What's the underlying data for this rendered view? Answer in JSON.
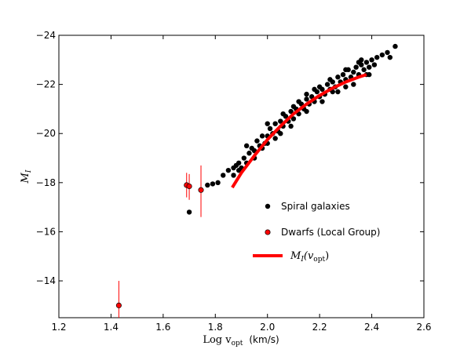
{
  "chart_data": {
    "type": "scatter",
    "xlabel": "Log v",
    "xlabel_sub": "opt",
    "xlabel_unit": "(km/s)",
    "ylabel": "M",
    "ylabel_sub": "I",
    "xlim": [
      1.2,
      2.6
    ],
    "ylim": [
      -12.5,
      -24
    ],
    "y_inverted": true,
    "grid": false,
    "legend_position": "center-right",
    "x_ticks": [
      1.2,
      1.4,
      1.6,
      1.8,
      2.0,
      2.2,
      2.4,
      2.6
    ],
    "x_tick_labels": [
      "1.2",
      "1.4",
      "1.6",
      "1.8",
      "2.0",
      "2.2",
      "2.4",
      "2.6"
    ],
    "y_ticks": [
      -14,
      -16,
      -18,
      -20,
      -22,
      -24
    ],
    "y_tick_labels": [
      "−14",
      "−16",
      "−18",
      "−20",
      "−22",
      "−24"
    ],
    "series": [
      {
        "name": "Spiral galaxies",
        "kind": "scatter",
        "color": "#000000",
        "points": [
          [
            1.7,
            -16.8
          ],
          [
            1.77,
            -17.9
          ],
          [
            1.79,
            -17.95
          ],
          [
            1.81,
            -18.0
          ],
          [
            1.83,
            -18.3
          ],
          [
            1.85,
            -18.5
          ],
          [
            1.87,
            -18.6
          ],
          [
            1.87,
            -18.3
          ],
          [
            1.89,
            -18.5
          ],
          [
            1.88,
            -18.7
          ],
          [
            1.89,
            -18.8
          ],
          [
            1.9,
            -18.6
          ],
          [
            1.91,
            -19.0
          ],
          [
            1.92,
            -18.8
          ],
          [
            1.93,
            -19.2
          ],
          [
            1.94,
            -19.4
          ],
          [
            1.95,
            -19.3
          ],
          [
            1.96,
            -19.7
          ],
          [
            1.97,
            -19.5
          ],
          [
            1.98,
            -19.9
          ],
          [
            1.99,
            -19.6
          ],
          [
            2.0,
            -19.9
          ],
          [
            2.01,
            -20.2
          ],
          [
            2.02,
            -20.0
          ],
          [
            2.03,
            -20.4
          ],
          [
            2.04,
            -20.1
          ],
          [
            2.05,
            -20.5
          ],
          [
            2.06,
            -20.3
          ],
          [
            2.07,
            -20.7
          ],
          [
            2.08,
            -20.5
          ],
          [
            2.09,
            -20.9
          ],
          [
            2.1,
            -20.6
          ],
          [
            2.11,
            -21.0
          ],
          [
            2.12,
            -20.8
          ],
          [
            2.13,
            -21.2
          ],
          [
            2.14,
            -21.0
          ],
          [
            2.15,
            -21.4
          ],
          [
            2.16,
            -21.2
          ],
          [
            2.17,
            -21.5
          ],
          [
            2.18,
            -21.3
          ],
          [
            2.19,
            -21.7
          ],
          [
            2.2,
            -21.5
          ],
          [
            2.21,
            -21.8
          ],
          [
            2.22,
            -21.6
          ],
          [
            2.23,
            -22.0
          ],
          [
            2.24,
            -21.8
          ],
          [
            2.25,
            -22.1
          ],
          [
            2.26,
            -21.9
          ],
          [
            2.27,
            -22.3
          ],
          [
            2.28,
            -22.1
          ],
          [
            2.29,
            -22.4
          ],
          [
            2.3,
            -22.2
          ],
          [
            2.31,
            -22.6
          ],
          [
            2.32,
            -22.3
          ],
          [
            2.33,
            -22.5
          ],
          [
            2.34,
            -22.7
          ],
          [
            2.35,
            -22.4
          ],
          [
            2.36,
            -22.8
          ],
          [
            2.37,
            -22.6
          ],
          [
            2.38,
            -22.9
          ],
          [
            2.39,
            -22.7
          ],
          [
            2.4,
            -23.0
          ],
          [
            2.42,
            -23.1
          ],
          [
            2.44,
            -23.2
          ],
          [
            2.46,
            -23.3
          ],
          [
            2.47,
            -23.1
          ],
          [
            2.49,
            -23.55
          ],
          [
            1.92,
            -19.5
          ],
          [
            1.95,
            -19.0
          ],
          [
            1.98,
            -19.4
          ],
          [
            2.0,
            -20.4
          ],
          [
            2.03,
            -19.8
          ],
          [
            2.06,
            -20.8
          ],
          [
            2.09,
            -20.3
          ],
          [
            2.12,
            -21.3
          ],
          [
            2.15,
            -20.9
          ],
          [
            2.18,
            -21.8
          ],
          [
            2.21,
            -21.3
          ],
          [
            2.24,
            -22.2
          ],
          [
            2.27,
            -21.7
          ],
          [
            2.3,
            -22.6
          ],
          [
            2.33,
            -22.0
          ],
          [
            2.36,
            -23.0
          ],
          [
            2.39,
            -22.4
          ],
          [
            2.0,
            -19.6
          ],
          [
            2.05,
            -20.0
          ],
          [
            2.1,
            -21.1
          ],
          [
            2.15,
            -21.6
          ],
          [
            2.2,
            -21.9
          ],
          [
            2.25,
            -21.7
          ],
          [
            2.3,
            -21.9
          ],
          [
            2.35,
            -22.9
          ],
          [
            2.38,
            -22.4
          ],
          [
            2.41,
            -22.8
          ]
        ]
      },
      {
        "name": "Dwarfs (Local Group)",
        "kind": "scatter-errorbar",
        "color": "#ff0000",
        "points": [
          {
            "x": 1.43,
            "y": -13.0,
            "yerr_low": -12.5,
            "yerr_high": -14.0
          },
          {
            "x": 1.69,
            "y": -17.9,
            "yerr_low": -17.4,
            "yerr_high": -18.4
          },
          {
            "x": 1.7,
            "y": -17.85,
            "yerr_low": -17.3,
            "yerr_high": -18.35
          },
          {
            "x": 1.745,
            "y": -17.7,
            "yerr_low": -16.6,
            "yerr_high": -18.7
          }
        ]
      },
      {
        "name": "M_I(v_opt)",
        "legend_main": "M",
        "legend_sub": "I",
        "legend_paren_open": "(v",
        "legend_paren_sub": "opt",
        "legend_paren_close": ")",
        "kind": "line",
        "color": "#ff0000",
        "points": [
          [
            1.865,
            -17.8
          ],
          [
            1.9,
            -18.4
          ],
          [
            1.95,
            -19.1
          ],
          [
            2.0,
            -19.75
          ],
          [
            2.05,
            -20.3
          ],
          [
            2.1,
            -20.8
          ],
          [
            2.15,
            -21.2
          ],
          [
            2.2,
            -21.55
          ],
          [
            2.25,
            -21.85
          ],
          [
            2.3,
            -22.1
          ],
          [
            2.35,
            -22.3
          ],
          [
            2.38,
            -22.4
          ]
        ]
      }
    ]
  }
}
